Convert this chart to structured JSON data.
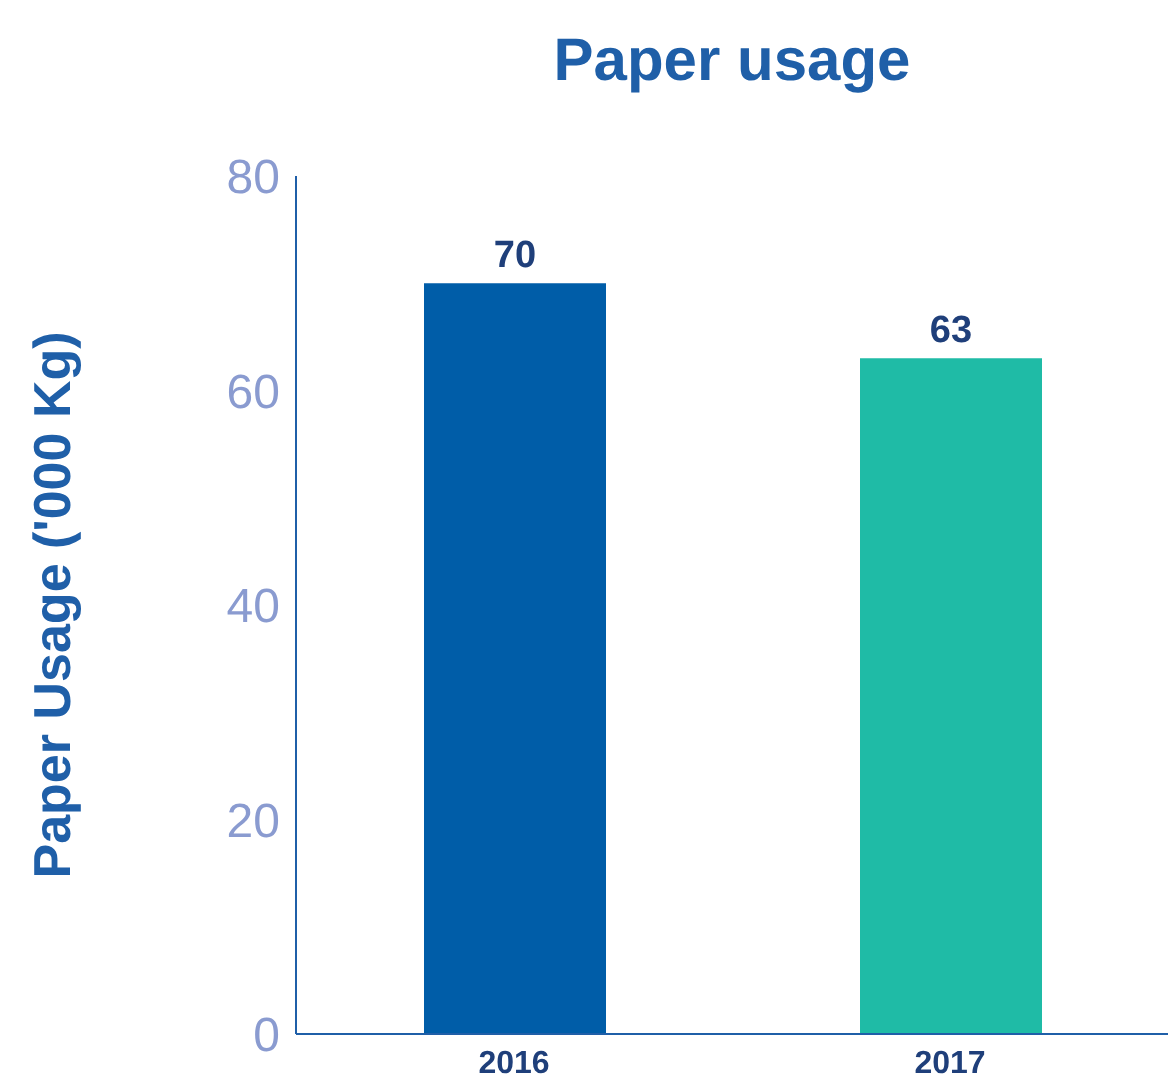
{
  "chart_data": {
    "type": "bar",
    "title": "Paper usage",
    "ylabel": "Paper Usage ('000 Kg)",
    "categories": [
      "2016",
      "2017"
    ],
    "values": [
      70,
      63
    ],
    "colors": [
      "#005da8",
      "#1fbba6"
    ],
    "ylim": [
      0,
      80
    ],
    "yticks": [
      0,
      20,
      40,
      60,
      80
    ],
    "data_labels": true
  }
}
